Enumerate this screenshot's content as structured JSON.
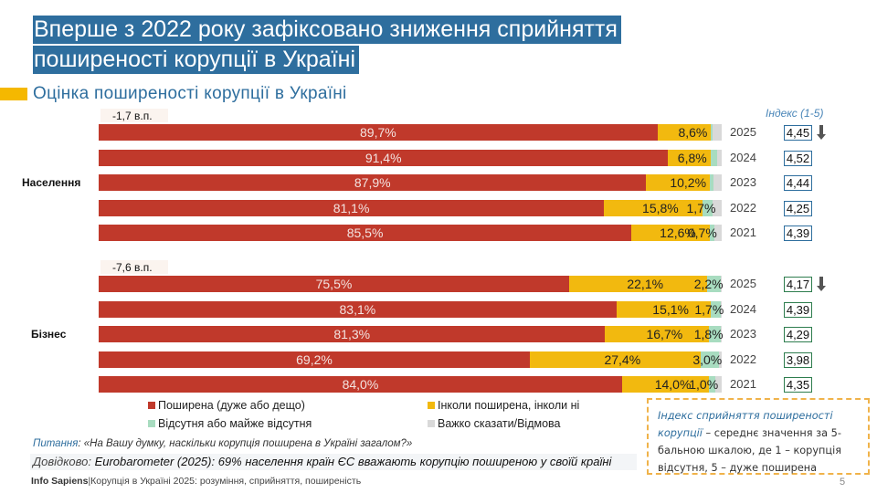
{
  "header": {
    "title_line1": "Вперше з 2022 року зафіксовано зниження сприйняття",
    "title_line2": "поширеності корупції в Україні",
    "subtitle": "Оцінка поширеності  корупції в Україні",
    "index_heading": "Індекс (1-5)"
  },
  "colors": {
    "title_bg": "#2e6e9e",
    "widespread": "#c0392b",
    "sometimes": "#f2b90f",
    "absent": "#a8dcc0",
    "hard_to_say": "#d9d9d9",
    "accent": "#f5b800"
  },
  "chart_data": {
    "type": "bar",
    "orientation": "horizontal",
    "stacked": true,
    "title": "Оцінка поширеності  корупції в Україні",
    "xlabel": "",
    "ylabel": "",
    "xlim": [
      0,
      100
    ],
    "unit": "%",
    "legend_position": "bottom",
    "series": [
      {
        "key": "widespread",
        "name": "Поширена (дуже або дещо)",
        "color": "#c0392b"
      },
      {
        "key": "sometimes",
        "name": "Інколи поширена, інколи ні",
        "color": "#f2b90f"
      },
      {
        "key": "absent",
        "name": "Відсутня або майже відсутня",
        "color": "#a8dcc0"
      },
      {
        "key": "hard",
        "name": "Важко сказати/Відмова",
        "color": "#d9d9d9"
      }
    ],
    "groups": [
      {
        "name": "Населення",
        "change_label": "-1,7 в.п.",
        "rows": [
          {
            "year": "2025",
            "widespread": 89.7,
            "sometimes": 8.6,
            "absent": 0.2,
            "hard": 1.5,
            "labels": {
              "widespread": "89,7%",
              "sometimes": "8,6%",
              "absent": ""
            },
            "index": "4,45",
            "index_down": true
          },
          {
            "year": "2024",
            "widespread": 91.4,
            "sometimes": 6.8,
            "absent": 1.0,
            "hard": 0.8,
            "labels": {
              "widespread": "91,4%",
              "sometimes": "6,8%",
              "absent": ""
            },
            "index": "4,52",
            "index_down": false
          },
          {
            "year": "2023",
            "widespread": 87.9,
            "sometimes": 10.2,
            "absent": 0.6,
            "hard": 1.3,
            "labels": {
              "widespread": "87,9%",
              "sometimes": "10,2%",
              "absent": ""
            },
            "index": "4,44",
            "index_down": false
          },
          {
            "year": "2022",
            "widespread": 81.1,
            "sometimes": 15.8,
            "absent": 1.7,
            "hard": 1.4,
            "labels": {
              "widespread": "81,1%",
              "sometimes": "15,8%",
              "absent": "1,7%"
            },
            "index": "4,25",
            "index_down": false
          },
          {
            "year": "2021",
            "widespread": 85.5,
            "sometimes": 12.6,
            "absent": 0.7,
            "hard": 1.2,
            "labels": {
              "widespread": "85,5%",
              "sometimes": "12,6%",
              "absent": "0,7%"
            },
            "index": "4,39",
            "index_down": false
          }
        ]
      },
      {
        "name": "Бізнес",
        "change_label": "-7,6 в.п.",
        "rows": [
          {
            "year": "2025",
            "widespread": 75.5,
            "sometimes": 22.1,
            "absent": 2.2,
            "hard": 0.2,
            "labels": {
              "widespread": "75,5%",
              "sometimes": "22,1%",
              "absent": "2,2%"
            },
            "index": "4,17",
            "index_down": true
          },
          {
            "year": "2024",
            "widespread": 83.1,
            "sometimes": 15.1,
            "absent": 1.7,
            "hard": 0.1,
            "labels": {
              "widespread": "83,1%",
              "sometimes": "15,1%",
              "absent": "1,7%"
            },
            "index": "4,39",
            "index_down": false
          },
          {
            "year": "2023",
            "widespread": 81.3,
            "sometimes": 16.7,
            "absent": 1.8,
            "hard": 0.2,
            "labels": {
              "widespread": "81,3%",
              "sometimes": "16,7%",
              "absent": "1,8%"
            },
            "index": "4,29",
            "index_down": false
          },
          {
            "year": "2022",
            "widespread": 69.2,
            "sometimes": 27.4,
            "absent": 3.0,
            "hard": 0.4,
            "labels": {
              "widespread": "69,2%",
              "sometimes": "27,4%",
              "absent": "3,0%"
            },
            "index": "3,98",
            "index_down": false
          },
          {
            "year": "2021",
            "widespread": 84.0,
            "sometimes": 14.0,
            "absent": 1.0,
            "hard": 1.0,
            "labels": {
              "widespread": "84,0%",
              "sometimes": "14,0%",
              "absent": "1,0%"
            },
            "index": "4,35",
            "index_down": false
          }
        ]
      }
    ]
  },
  "legend": [
    {
      "label": "Поширена (дуже або дещо)",
      "color": "#c0392b"
    },
    {
      "label": "Інколи поширена, інколи ні",
      "color": "#f2b90f"
    },
    {
      "label": "Відсутня або майже відсутня",
      "color": "#a8dcc0"
    },
    {
      "label": "Важко сказати/Відмова",
      "color": "#d9d9d9"
    }
  ],
  "notes": {
    "question_label": "Питання",
    "question_text": ": «На Вашу думку, наскільки корупція поширена в Україні загалом?»",
    "reference_label": "Довідково: ",
    "reference_text": "Eurobarometer (2025): 69% населення країн ЄС вважають корупцію поширеною у своїй країні",
    "index_note_em": "Індекс сприйняття поширеності корупції",
    "index_note_text": " – середнє значення за 5-бальною шкалою, де 1 – корупція відсутня, 5 – дуже поширена"
  },
  "footer": {
    "brand": "Info Sapiens",
    "separator": "|",
    "text": "Корупція в Україні 2025: розуміння, сприйняття, поширеність",
    "page_number": "5"
  }
}
